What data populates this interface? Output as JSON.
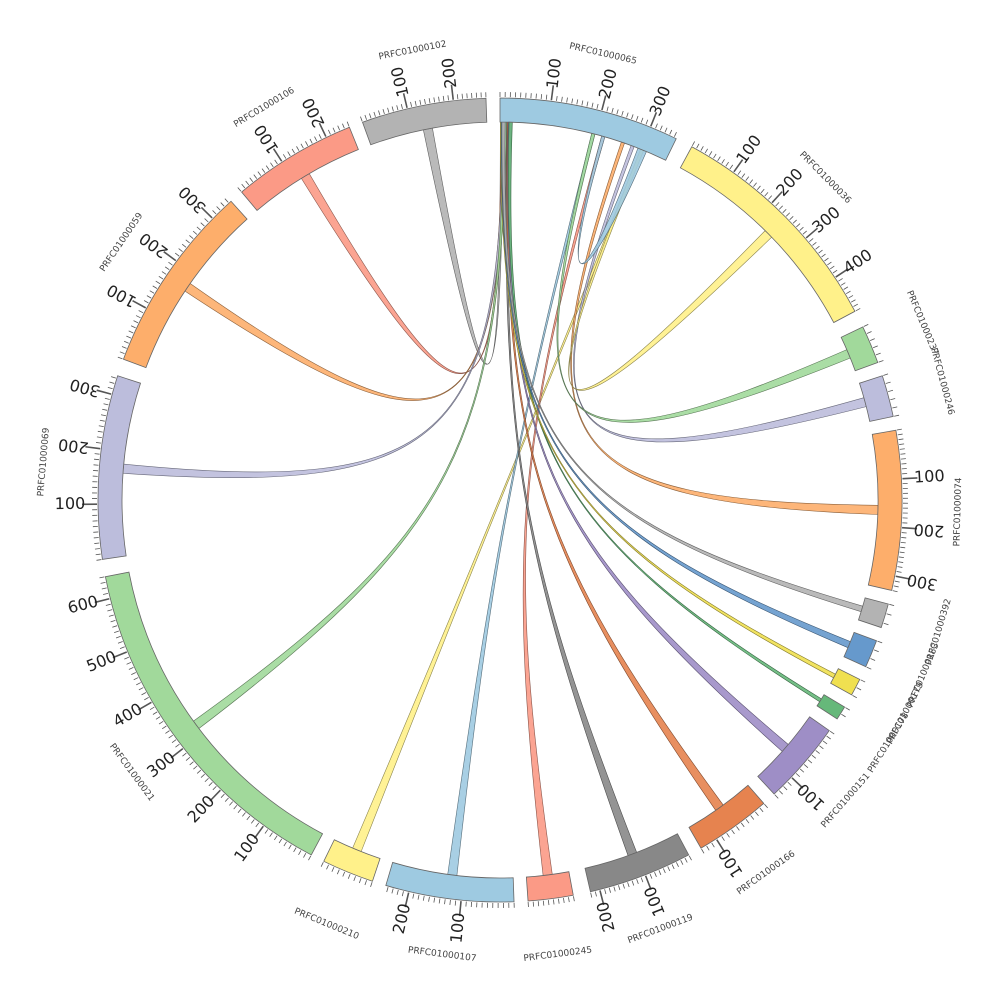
{
  "chart_data": {
    "type": "chord",
    "title": "",
    "segments": [
      {
        "id": "PRFC01000065",
        "label": "PRFC01000065",
        "color": "#9ecae1",
        "length": 355,
        "ticks": [
          "100",
          "200",
          "300"
        ]
      },
      {
        "id": "PRFC01000036",
        "label": "PRFC01000036",
        "color": "#fff18a",
        "length": 480,
        "ticks": [
          "100",
          "200",
          "300",
          "400"
        ]
      },
      {
        "id": "PRFC01000237",
        "label": "PRFC01000237",
        "color": "#a1d99b",
        "length": 50,
        "ticks": []
      },
      {
        "id": "PRFC01000246",
        "label": "PRFC01000246",
        "color": "#bcbddc",
        "length": 50,
        "ticks": []
      },
      {
        "id": "PRFC01000074",
        "label": "PRFC01000074",
        "color": "#fdae6b",
        "length": 330,
        "ticks": [
          "100",
          "200",
          "300"
        ]
      },
      {
        "id": "PRFC01000392",
        "label": "PRFC01000392",
        "color": "#b3b3b3",
        "length": 25,
        "ticks": []
      },
      {
        "id": "PRFC01000183",
        "label": "PRFC01000183",
        "color": "#6699cc",
        "length": 30,
        "ticks": []
      },
      {
        "id": "PRFC01000179",
        "label": "PRFC01000179",
        "color": "#f0e050",
        "length": 20,
        "ticks": []
      },
      {
        "id": "PRFC01000178",
        "label": "PRFC01000178",
        "color": "#66b87a",
        "length": 18,
        "ticks": []
      },
      {
        "id": "PRFC01000151",
        "label": "PRFC01000151",
        "color": "#9e8ec6",
        "length": 140,
        "ticks": [
          "100"
        ]
      },
      {
        "id": "PRFC01000166",
        "label": "PRFC01000166",
        "color": "#e6834f",
        "length": 130,
        "ticks": [
          "100"
        ]
      },
      {
        "id": "PRFC01000119",
        "label": "PRFC01000119",
        "color": "#888888",
        "length": 220,
        "ticks": [
          "100",
          "200"
        ]
      },
      {
        "id": "PRFC01000245",
        "label": "PRFC01000245",
        "color": "#fb9a86",
        "length": 90,
        "ticks": []
      },
      {
        "id": "PRFC01000107",
        "label": "PRFC01000107",
        "color": "#9ecae1",
        "length": 245,
        "ticks": [
          "100",
          "200"
        ]
      },
      {
        "id": "PRFC01000210",
        "label": "PRFC01000210",
        "color": "#fff18a",
        "length": 90,
        "ticks": []
      },
      {
        "id": "PRFC01000021",
        "label": "PRFC01000021",
        "color": "#a1d99b",
        "length": 640,
        "ticks": [
          "100",
          "200",
          "300",
          "400",
          "500",
          "600"
        ]
      },
      {
        "id": "PRFC01000069",
        "label": "PRFC01000069",
        "color": "#bcbddc",
        "length": 335,
        "ticks": [
          "100",
          "200",
          "300"
        ]
      },
      {
        "id": "PRFC01000059",
        "label": "PRFC01000059",
        "color": "#fdae6b",
        "length": 345,
        "ticks": [
          "100",
          "200",
          "300"
        ]
      },
      {
        "id": "PRFC01000106",
        "label": "PRFC01000106",
        "color": "#fb9a86",
        "length": 250,
        "ticks": [
          "100",
          "200"
        ]
      },
      {
        "id": "PRFC01000102",
        "label": "PRFC01000102",
        "color": "#b3b3b3",
        "length": 270,
        "ticks": [
          "100",
          "200"
        ]
      }
    ],
    "links": [
      {
        "from": "PRFC01000102",
        "to": "PRFC01000065",
        "color": "#b3b3b3"
      },
      {
        "from": "PRFC01000106",
        "to": "PRFC01000065",
        "color": "#fb9a86"
      },
      {
        "from": "PRFC01000059",
        "to": "PRFC01000065",
        "color": "#fdae6b"
      },
      {
        "from": "PRFC01000069",
        "to": "PRFC01000065",
        "color": "#bcbddc"
      },
      {
        "from": "PRFC01000021",
        "to": "PRFC01000065",
        "color": "#a1d99b"
      },
      {
        "from": "PRFC01000210",
        "to": "PRFC01000065",
        "color": "#fff18a"
      },
      {
        "from": "PRFC01000107",
        "to": "PRFC01000065",
        "color": "#9ecae1"
      },
      {
        "from": "PRFC01000245",
        "to": "PRFC01000065",
        "color": "#fb9a86"
      },
      {
        "from": "PRFC01000119",
        "to": "PRFC01000065",
        "color": "#888888"
      },
      {
        "from": "PRFC01000166",
        "to": "PRFC01000065",
        "color": "#e6834f"
      },
      {
        "from": "PRFC01000151",
        "to": "PRFC01000065",
        "color": "#9e8ec6"
      },
      {
        "from": "PRFC01000178",
        "to": "PRFC01000065",
        "color": "#66b87a"
      },
      {
        "from": "PRFC01000179",
        "to": "PRFC01000065",
        "color": "#f0e050"
      },
      {
        "from": "PRFC01000183",
        "to": "PRFC01000065",
        "color": "#6699cc"
      },
      {
        "from": "PRFC01000392",
        "to": "PRFC01000065",
        "color": "#b3b3b3"
      },
      {
        "from": "PRFC01000074",
        "to": "PRFC01000065",
        "color": "#fdae6b"
      },
      {
        "from": "PRFC01000246",
        "to": "PRFC01000065",
        "color": "#bcbddc"
      },
      {
        "from": "PRFC01000036",
        "to": "PRFC01000065",
        "color": "#fff18a"
      },
      {
        "from": "PRFC01000237",
        "to": "PRFC01000065",
        "color": "#a1d99b"
      },
      {
        "from": "PRFC01000065",
        "to": "PRFC01000065",
        "color": "#9ecae1"
      }
    ]
  }
}
